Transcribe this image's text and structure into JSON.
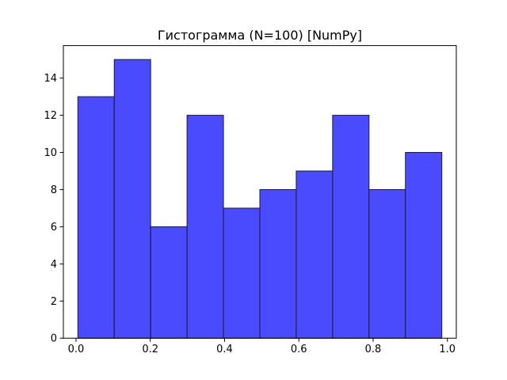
{
  "chart_data": {
    "type": "bar",
    "title": "Гистограмма (N=100) [NumPy]",
    "xlabel": "",
    "ylabel": "",
    "bin_edges": [
      0.005,
      0.103,
      0.201,
      0.299,
      0.397,
      0.495,
      0.593,
      0.691,
      0.789,
      0.887,
      0.985
    ],
    "values": [
      13,
      15,
      6,
      12,
      7,
      8,
      9,
      12,
      8,
      10
    ],
    "xlim": [
      -0.034,
      1.024
    ],
    "ylim": [
      0,
      15.75
    ],
    "xticks": [
      0.0,
      0.2,
      0.4,
      0.6,
      0.8,
      1.0
    ],
    "xtick_labels": [
      "0.0",
      "0.2",
      "0.4",
      "0.6",
      "0.8",
      "1.0"
    ],
    "yticks": [
      0,
      2,
      4,
      6,
      8,
      10,
      12,
      14
    ],
    "ytick_labels": [
      "0",
      "2",
      "4",
      "6",
      "8",
      "10",
      "12",
      "14"
    ],
    "grid": false,
    "bar_color": "#4a4aff",
    "bar_edge_color": "#1a1a2e"
  }
}
